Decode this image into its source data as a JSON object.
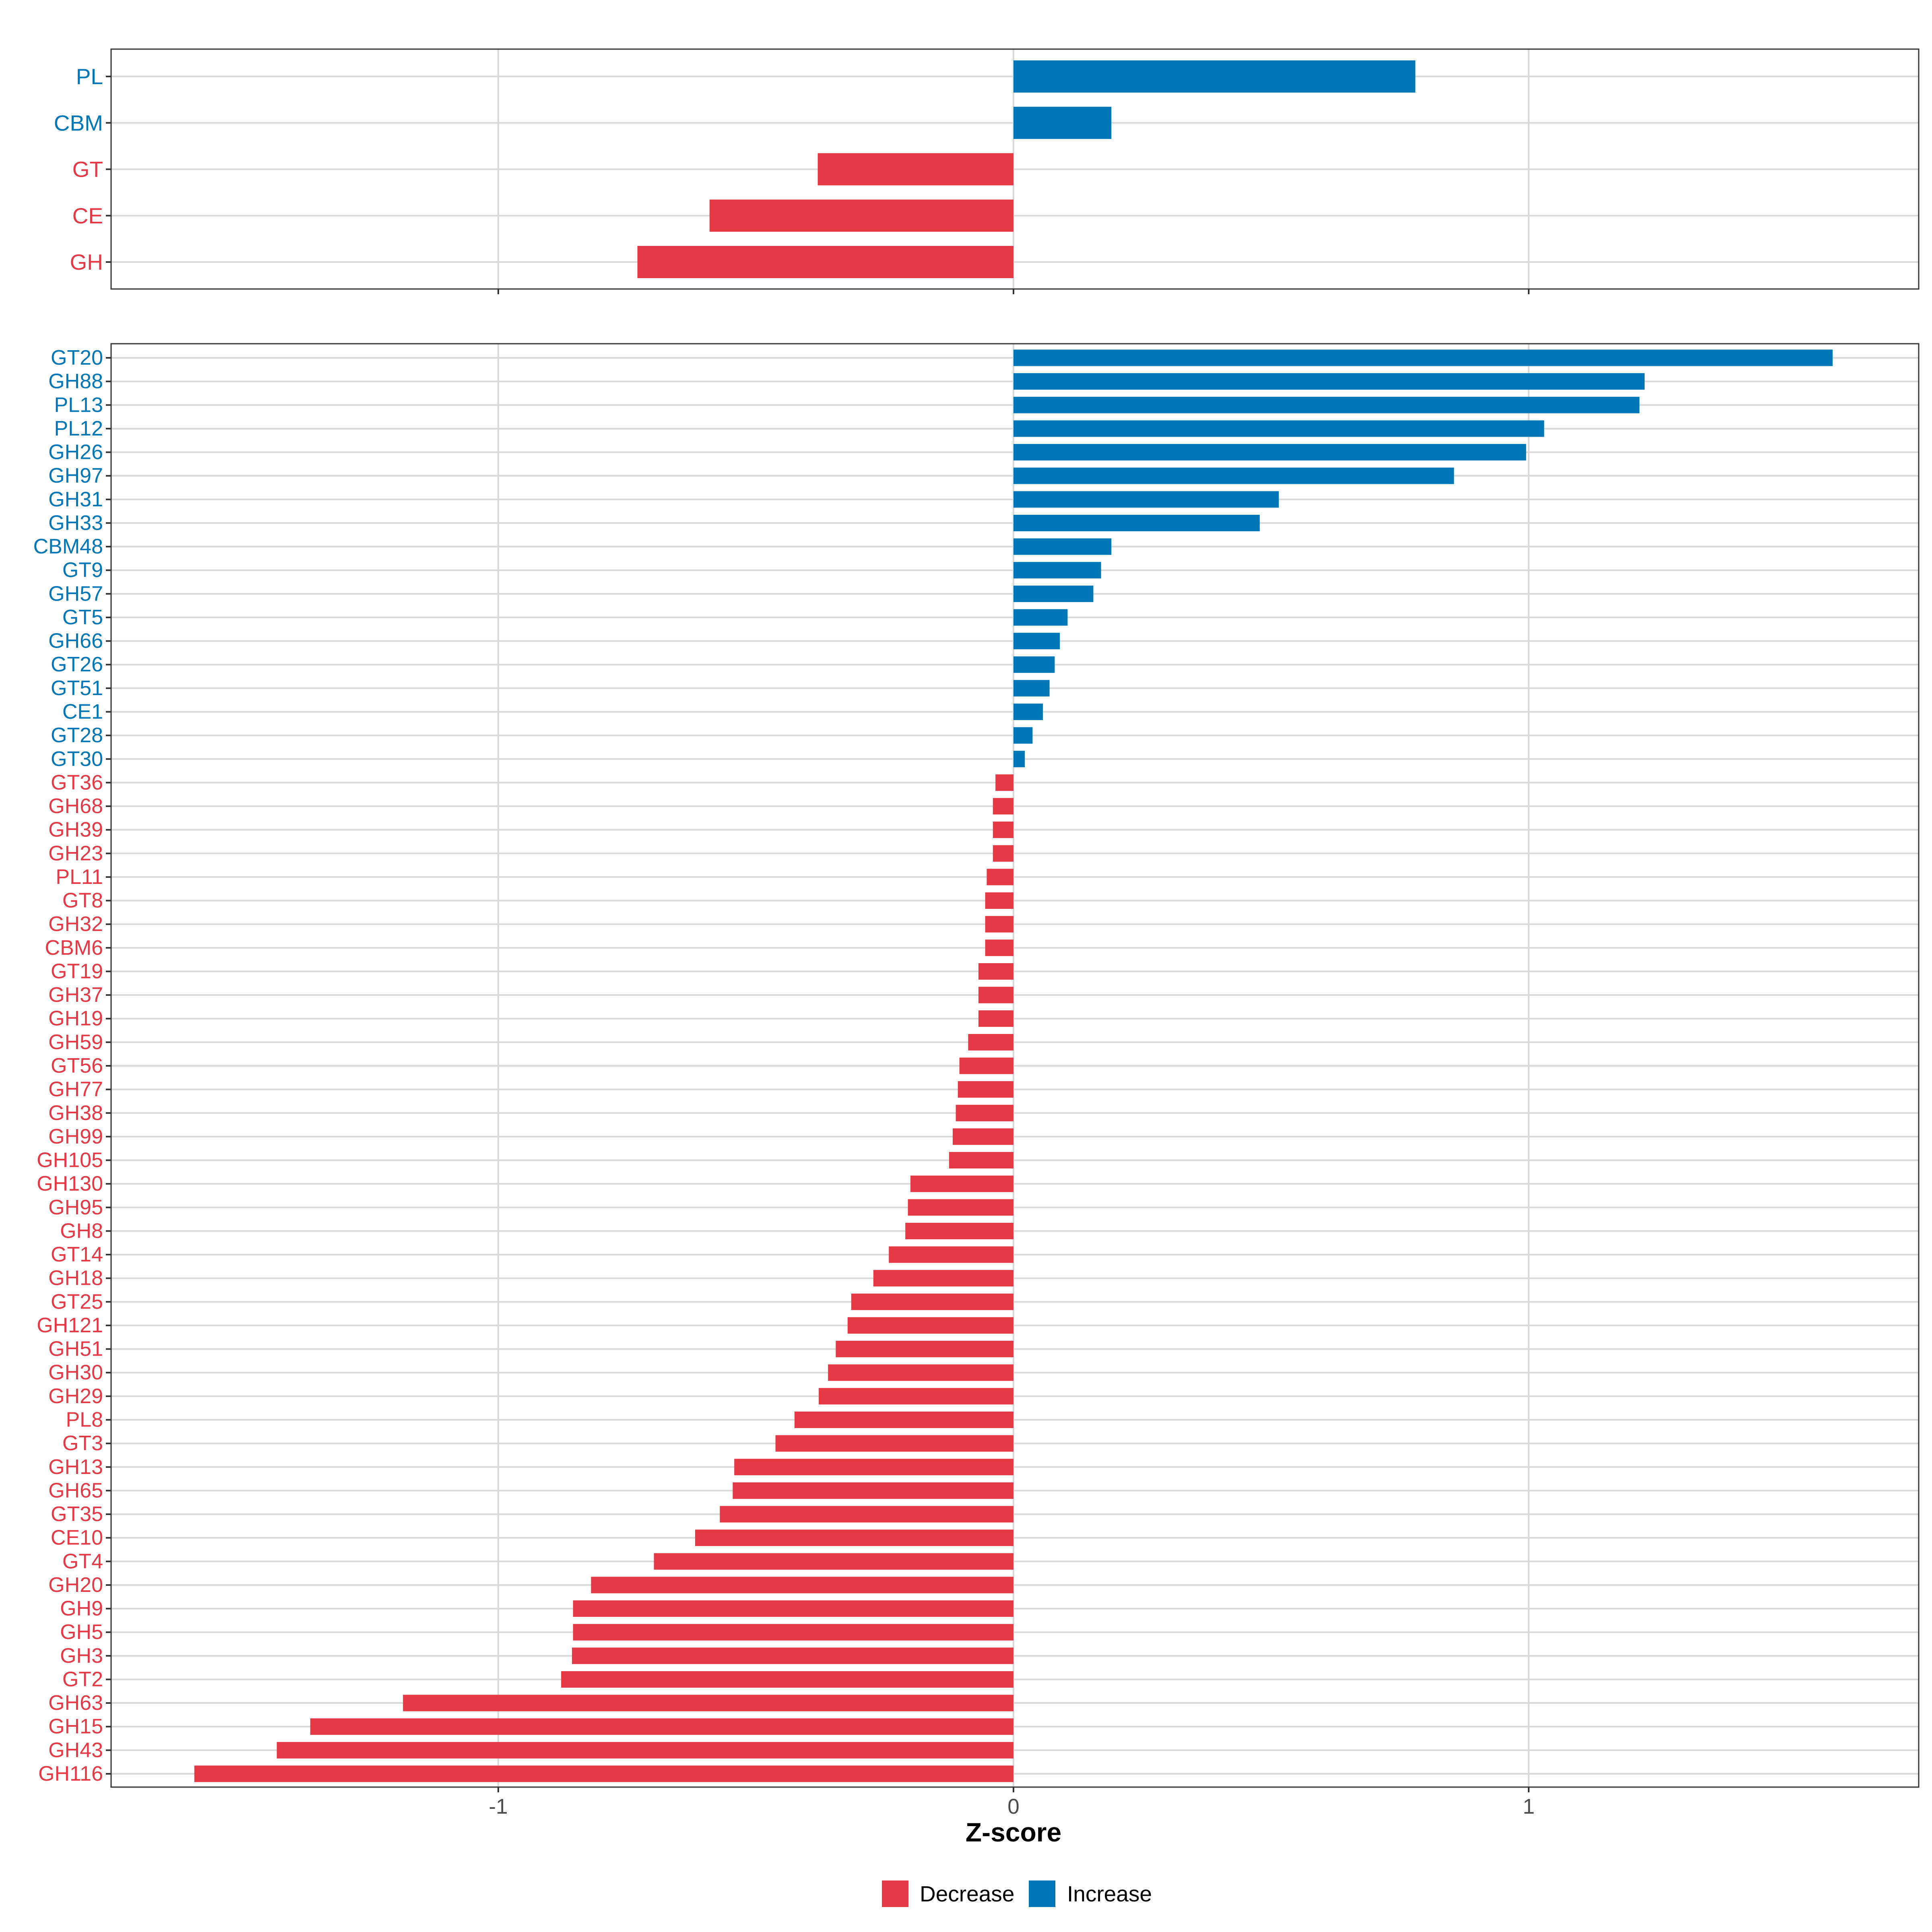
{
  "chart_data": [
    {
      "type": "bar",
      "orientation": "horizontal",
      "panel": "top",
      "title": "",
      "xlabel": "",
      "ylabel": "",
      "xlim": [
        -1.75,
        1.75
      ],
      "x_ticks": [
        -1,
        0,
        1
      ],
      "grid": true,
      "categories": [
        "PL",
        "CBM",
        "GT",
        "CE",
        "GH"
      ],
      "values": [
        0.78,
        0.19,
        -0.38,
        -0.59,
        -0.73
      ]
    },
    {
      "type": "bar",
      "orientation": "horizontal",
      "panel": "bottom",
      "title": "",
      "xlabel": "Z-score",
      "ylabel": "",
      "xlim": [
        -1.75,
        1.75
      ],
      "x_ticks": [
        -1,
        0,
        1
      ],
      "x_tick_labels": [
        "-1",
        "0",
        "1"
      ],
      "grid": true,
      "categories": [
        "GT20",
        "GH88",
        "PL13",
        "PL12",
        "GH26",
        "GH97",
        "GH31",
        "GH33",
        "CBM48",
        "GT9",
        "GH57",
        "GT5",
        "GH66",
        "GT26",
        "GT51",
        "CE1",
        "GT28",
        "GT30",
        "GT36",
        "GH68",
        "GH39",
        "GH23",
        "PL11",
        "GT8",
        "GH32",
        "CBM6",
        "GT19",
        "GH37",
        "GH19",
        "GH59",
        "GT56",
        "GH77",
        "GH38",
        "GH99",
        "GH105",
        "GH130",
        "GH95",
        "GH8",
        "GT14",
        "GH18",
        "GT25",
        "GH121",
        "GH51",
        "GH30",
        "GH29",
        "PL8",
        "GT3",
        "GH13",
        "GH65",
        "GT35",
        "CE10",
        "GT4",
        "GH20",
        "GH9",
        "GH5",
        "GH3",
        "GT2",
        "GH63",
        "GH15",
        "GH43",
        "GH116"
      ],
      "values": [
        1.59,
        1.225,
        1.215,
        1.03,
        0.995,
        0.855,
        0.515,
        0.478,
        0.19,
        0.17,
        0.155,
        0.105,
        0.09,
        0.08,
        0.07,
        0.057,
        0.037,
        0.022,
        -0.035,
        -0.04,
        -0.04,
        -0.04,
        -0.052,
        -0.055,
        -0.055,
        -0.055,
        -0.068,
        -0.068,
        -0.068,
        -0.088,
        -0.105,
        -0.108,
        -0.112,
        -0.118,
        -0.125,
        -0.2,
        -0.205,
        -0.21,
        -0.242,
        -0.272,
        -0.315,
        -0.322,
        -0.345,
        -0.36,
        -0.378,
        -0.425,
        -0.462,
        -0.542,
        -0.545,
        -0.57,
        -0.618,
        -0.698,
        -0.82,
        -0.855,
        -0.855,
        -0.857,
        -0.878,
        -1.185,
        -1.365,
        -1.43,
        -1.59
      ]
    }
  ],
  "legend": {
    "placement": "bottom",
    "items": [
      {
        "label": "Decrease",
        "color": "#E63946"
      },
      {
        "label": "Increase",
        "color": "#0077B6"
      }
    ]
  },
  "colors": {
    "decrease": "#E63946",
    "increase": "#0077B6",
    "grid": "#D9D9D9",
    "axis": "#333333"
  }
}
